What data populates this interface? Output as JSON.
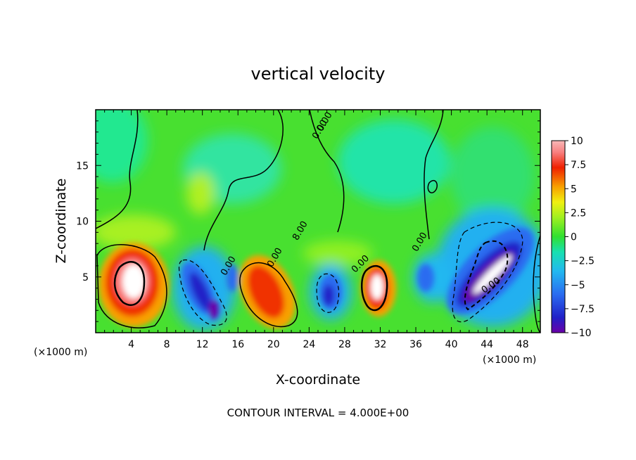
{
  "chart_data": {
    "type": "heatmap",
    "title": "vertical velocity",
    "xlabel": "X-coordinate",
    "ylabel": "Z-coordinate",
    "x_unit": "(×1000 m)",
    "x_ticks": [
      4,
      8,
      12,
      16,
      20,
      24,
      28,
      32,
      36,
      40,
      44,
      48
    ],
    "y_ticks": [
      5,
      10,
      15
    ],
    "xlim": [
      0,
      50
    ],
    "ylim": [
      0,
      20
    ],
    "colorbar": {
      "ticks": [
        "10",
        "7.5",
        "5",
        "2.5",
        "0",
        "-2.5",
        "-5",
        "-7.5",
        "-10"
      ],
      "range": [
        -10,
        10
      ]
    },
    "contour_labels": [
      "0.00",
      "0.00",
      "0.00",
      "0.00",
      "0.00",
      "0.00",
      "0.00",
      "8.00"
    ],
    "footer": "CONTOUR INTERVAL = 4.000E+00"
  }
}
